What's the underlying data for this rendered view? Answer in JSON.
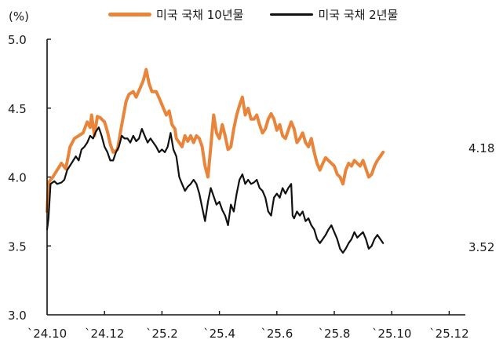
{
  "chart_data": {
    "type": "line",
    "title": "",
    "unit_label": "(%)",
    "xlabel": "",
    "ylabel": "(%)",
    "ylim": [
      3.0,
      5.0
    ],
    "yticks": [
      "5.0",
      "4.5",
      "4.0",
      "3.5",
      "3.0"
    ],
    "xticks": [
      "`24.10",
      "`24.12",
      "`25.2",
      "`25.4",
      "`25.6",
      "`25.8",
      "`25.10",
      "`25.12"
    ],
    "grid": false,
    "legend_position": "top",
    "series": [
      {
        "name": "미국 국채 10년물",
        "color": "#E8853A",
        "end_value": "4.18",
        "points": [
          [
            0,
            3.75
          ],
          [
            0.05,
            3.96
          ],
          [
            0.2,
            4.0
          ],
          [
            0.35,
            4.05
          ],
          [
            0.5,
            4.1
          ],
          [
            0.65,
            4.06
          ],
          [
            0.8,
            4.22
          ],
          [
            0.95,
            4.28
          ],
          [
            1.1,
            4.3
          ],
          [
            1.25,
            4.32
          ],
          [
            1.4,
            4.4
          ],
          [
            1.5,
            4.36
          ],
          [
            1.55,
            4.45
          ],
          [
            1.65,
            4.3
          ],
          [
            1.75,
            4.44
          ],
          [
            1.85,
            4.43
          ],
          [
            2.0,
            4.4
          ],
          [
            2.1,
            4.33
          ],
          [
            2.2,
            4.24
          ],
          [
            2.3,
            4.18
          ],
          [
            2.45,
            4.2
          ],
          [
            2.6,
            4.38
          ],
          [
            2.75,
            4.55
          ],
          [
            2.85,
            4.6
          ],
          [
            3.0,
            4.62
          ],
          [
            3.1,
            4.58
          ],
          [
            3.25,
            4.65
          ],
          [
            3.35,
            4.7
          ],
          [
            3.45,
            4.78
          ],
          [
            3.55,
            4.68
          ],
          [
            3.65,
            4.62
          ],
          [
            3.8,
            4.62
          ],
          [
            3.95,
            4.55
          ],
          [
            4.05,
            4.5
          ],
          [
            4.15,
            4.45
          ],
          [
            4.25,
            4.48
          ],
          [
            4.35,
            4.38
          ],
          [
            4.45,
            4.35
          ],
          [
            4.5,
            4.28
          ],
          [
            4.6,
            4.25
          ],
          [
            4.7,
            4.22
          ],
          [
            4.8,
            4.3
          ],
          [
            4.9,
            4.26
          ],
          [
            5.0,
            4.3
          ],
          [
            5.1,
            4.25
          ],
          [
            5.2,
            4.3
          ],
          [
            5.3,
            4.28
          ],
          [
            5.4,
            4.22
          ],
          [
            5.5,
            4.08
          ],
          [
            5.6,
            4.0
          ],
          [
            5.7,
            4.22
          ],
          [
            5.8,
            4.45
          ],
          [
            5.9,
            4.32
          ],
          [
            6.0,
            4.28
          ],
          [
            6.1,
            4.38
          ],
          [
            6.2,
            4.3
          ],
          [
            6.3,
            4.2
          ],
          [
            6.4,
            4.22
          ],
          [
            6.5,
            4.35
          ],
          [
            6.6,
            4.45
          ],
          [
            6.7,
            4.52
          ],
          [
            6.8,
            4.58
          ],
          [
            6.9,
            4.45
          ],
          [
            7.0,
            4.5
          ],
          [
            7.1,
            4.42
          ],
          [
            7.2,
            4.42
          ],
          [
            7.3,
            4.45
          ],
          [
            7.4,
            4.38
          ],
          [
            7.5,
            4.32
          ],
          [
            7.6,
            4.35
          ],
          [
            7.7,
            4.42
          ],
          [
            7.8,
            4.46
          ],
          [
            7.9,
            4.42
          ],
          [
            8.0,
            4.34
          ],
          [
            8.1,
            4.38
          ],
          [
            8.2,
            4.3
          ],
          [
            8.3,
            4.28
          ],
          [
            8.4,
            4.34
          ],
          [
            8.5,
            4.4
          ],
          [
            8.6,
            4.35
          ],
          [
            8.7,
            4.25
          ],
          [
            8.8,
            4.28
          ],
          [
            8.9,
            4.32
          ],
          [
            9.0,
            4.25
          ],
          [
            9.1,
            4.22
          ],
          [
            9.2,
            4.28
          ],
          [
            9.3,
            4.18
          ],
          [
            9.4,
            4.1
          ],
          [
            9.5,
            4.05
          ],
          [
            9.6,
            4.1
          ],
          [
            9.7,
            4.14
          ],
          [
            9.8,
            4.12
          ],
          [
            9.9,
            4.1
          ],
          [
            10.0,
            4.08
          ],
          [
            10.1,
            4.02
          ],
          [
            10.2,
            4.0
          ],
          [
            10.3,
            3.95
          ],
          [
            10.4,
            4.05
          ],
          [
            10.5,
            4.1
          ],
          [
            10.6,
            4.08
          ],
          [
            10.7,
            4.12
          ],
          [
            10.8,
            4.1
          ],
          [
            10.9,
            4.08
          ],
          [
            11.0,
            4.12
          ],
          [
            11.1,
            4.06
          ],
          [
            11.2,
            4.0
          ],
          [
            11.3,
            4.02
          ],
          [
            11.4,
            4.08
          ],
          [
            11.5,
            4.12
          ],
          [
            11.6,
            4.15
          ],
          [
            11.7,
            4.18
          ]
        ]
      },
      {
        "name": "미국 국채 2년물",
        "color": "#111111",
        "end_value": "3.52",
        "points": [
          [
            0,
            3.62
          ],
          [
            0.05,
            3.7
          ],
          [
            0.12,
            3.95
          ],
          [
            0.25,
            3.97
          ],
          [
            0.35,
            3.95
          ],
          [
            0.5,
            3.96
          ],
          [
            0.6,
            3.98
          ],
          [
            0.7,
            4.05
          ],
          [
            0.85,
            4.1
          ],
          [
            1.0,
            4.15
          ],
          [
            1.1,
            4.12
          ],
          [
            1.2,
            4.2
          ],
          [
            1.3,
            4.22
          ],
          [
            1.4,
            4.25
          ],
          [
            1.5,
            4.3
          ],
          [
            1.6,
            4.28
          ],
          [
            1.7,
            4.33
          ],
          [
            1.8,
            4.36
          ],
          [
            1.9,
            4.3
          ],
          [
            2.0,
            4.22
          ],
          [
            2.1,
            4.18
          ],
          [
            2.2,
            4.12
          ],
          [
            2.3,
            4.12
          ],
          [
            2.4,
            4.18
          ],
          [
            2.5,
            4.22
          ],
          [
            2.6,
            4.3
          ],
          [
            2.7,
            4.28
          ],
          [
            2.8,
            4.28
          ],
          [
            2.9,
            4.25
          ],
          [
            3.0,
            4.3
          ],
          [
            3.1,
            4.26
          ],
          [
            3.2,
            4.28
          ],
          [
            3.3,
            4.35
          ],
          [
            3.4,
            4.3
          ],
          [
            3.5,
            4.25
          ],
          [
            3.6,
            4.28
          ],
          [
            3.7,
            4.25
          ],
          [
            3.8,
            4.22
          ],
          [
            3.9,
            4.18
          ],
          [
            4.0,
            4.2
          ],
          [
            4.1,
            4.18
          ],
          [
            4.2,
            4.22
          ],
          [
            4.3,
            4.32
          ],
          [
            4.4,
            4.2
          ],
          [
            4.5,
            4.15
          ],
          [
            4.55,
            4.08
          ],
          [
            4.6,
            4.0
          ],
          [
            4.7,
            3.95
          ],
          [
            4.8,
            3.9
          ],
          [
            4.9,
            3.93
          ],
          [
            5.0,
            3.95
          ],
          [
            5.1,
            3.98
          ],
          [
            5.2,
            3.95
          ],
          [
            5.3,
            3.88
          ],
          [
            5.4,
            3.78
          ],
          [
            5.5,
            3.68
          ],
          [
            5.6,
            3.82
          ],
          [
            5.7,
            3.92
          ],
          [
            5.8,
            3.86
          ],
          [
            5.9,
            3.8
          ],
          [
            6.0,
            3.82
          ],
          [
            6.1,
            3.76
          ],
          [
            6.2,
            3.72
          ],
          [
            6.3,
            3.65
          ],
          [
            6.4,
            3.8
          ],
          [
            6.5,
            3.75
          ],
          [
            6.6,
            3.88
          ],
          [
            6.7,
            3.98
          ],
          [
            6.8,
            4.02
          ],
          [
            6.9,
            3.95
          ],
          [
            7.0,
            3.98
          ],
          [
            7.1,
            3.95
          ],
          [
            7.2,
            3.96
          ],
          [
            7.3,
            3.98
          ],
          [
            7.4,
            3.92
          ],
          [
            7.5,
            3.9
          ],
          [
            7.6,
            3.85
          ],
          [
            7.7,
            3.75
          ],
          [
            7.8,
            3.72
          ],
          [
            7.9,
            3.85
          ],
          [
            8.0,
            3.88
          ],
          [
            8.1,
            3.85
          ],
          [
            8.2,
            3.92
          ],
          [
            8.3,
            3.88
          ],
          [
            8.4,
            3.92
          ],
          [
            8.5,
            3.95
          ],
          [
            8.55,
            3.72
          ],
          [
            8.6,
            3.7
          ],
          [
            8.7,
            3.75
          ],
          [
            8.8,
            3.72
          ],
          [
            8.9,
            3.75
          ],
          [
            9.0,
            3.68
          ],
          [
            9.1,
            3.7
          ],
          [
            9.2,
            3.65
          ],
          [
            9.3,
            3.62
          ],
          [
            9.4,
            3.55
          ],
          [
            9.5,
            3.52
          ],
          [
            9.6,
            3.55
          ],
          [
            9.7,
            3.58
          ],
          [
            9.8,
            3.62
          ],
          [
            9.9,
            3.65
          ],
          [
            10.0,
            3.6
          ],
          [
            10.1,
            3.55
          ],
          [
            10.2,
            3.48
          ],
          [
            10.3,
            3.45
          ],
          [
            10.4,
            3.48
          ],
          [
            10.5,
            3.52
          ],
          [
            10.6,
            3.55
          ],
          [
            10.7,
            3.6
          ],
          [
            10.8,
            3.56
          ],
          [
            10.9,
            3.58
          ],
          [
            11.0,
            3.6
          ],
          [
            11.1,
            3.55
          ],
          [
            11.2,
            3.48
          ],
          [
            11.3,
            3.5
          ],
          [
            11.4,
            3.55
          ],
          [
            11.5,
            3.58
          ],
          [
            11.6,
            3.55
          ],
          [
            11.7,
            3.52
          ]
        ]
      }
    ]
  },
  "legend": {
    "items": [
      {
        "label": "미국 국채 10년물",
        "color": "#E8853A"
      },
      {
        "label": "미국 국채 2년물",
        "color": "#111111"
      }
    ]
  },
  "labels": {
    "unit": "(%)",
    "end_10y": "4.18",
    "end_2y": "3.52"
  }
}
